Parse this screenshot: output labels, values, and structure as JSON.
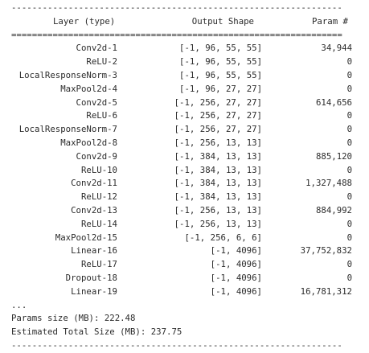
{
  "rules": {
    "dashes": "----------------------------------------------------------------",
    "equals": "================================================================"
  },
  "header": {
    "layer": "Layer (type)",
    "shape": "Output Shape",
    "param": "Param #"
  },
  "rows": [
    {
      "layer": "Conv2d-1",
      "shape": "[-1, 96, 55, 55]",
      "param": "34,944"
    },
    {
      "layer": "ReLU-2",
      "shape": "[-1, 96, 55, 55]",
      "param": "0"
    },
    {
      "layer": "LocalResponseNorm-3",
      "shape": "[-1, 96, 55, 55]",
      "param": "0"
    },
    {
      "layer": "MaxPool2d-4",
      "shape": "[-1, 96, 27, 27]",
      "param": "0"
    },
    {
      "layer": "Conv2d-5",
      "shape": "[-1, 256, 27, 27]",
      "param": "614,656"
    },
    {
      "layer": "ReLU-6",
      "shape": "[-1, 256, 27, 27]",
      "param": "0"
    },
    {
      "layer": "LocalResponseNorm-7",
      "shape": "[-1, 256, 27, 27]",
      "param": "0"
    },
    {
      "layer": "MaxPool2d-8",
      "shape": "[-1, 256, 13, 13]",
      "param": "0"
    },
    {
      "layer": "Conv2d-9",
      "shape": "[-1, 384, 13, 13]",
      "param": "885,120"
    },
    {
      "layer": "ReLU-10",
      "shape": "[-1, 384, 13, 13]",
      "param": "0"
    },
    {
      "layer": "Conv2d-11",
      "shape": "[-1, 384, 13, 13]",
      "param": "1,327,488"
    },
    {
      "layer": "ReLU-12",
      "shape": "[-1, 384, 13, 13]",
      "param": "0"
    },
    {
      "layer": "Conv2d-13",
      "shape": "[-1, 256, 13, 13]",
      "param": "884,992"
    },
    {
      "layer": "ReLU-14",
      "shape": "[-1, 256, 13, 13]",
      "param": "0"
    },
    {
      "layer": "MaxPool2d-15",
      "shape": "[-1, 256, 6, 6]",
      "param": "0"
    },
    {
      "layer": "Linear-16",
      "shape": "[-1, 4096]",
      "param": "37,752,832"
    },
    {
      "layer": "ReLU-17",
      "shape": "[-1, 4096]",
      "param": "0"
    },
    {
      "layer": "Dropout-18",
      "shape": "[-1, 4096]",
      "param": "0"
    },
    {
      "layer": "Linear-19",
      "shape": "[-1, 4096]",
      "param": "16,781,312"
    }
  ],
  "ellipsis": "...",
  "footer": {
    "params_size": "Params size (MB): 222.48",
    "total_size": "Estimated Total Size (MB): 237.75"
  }
}
